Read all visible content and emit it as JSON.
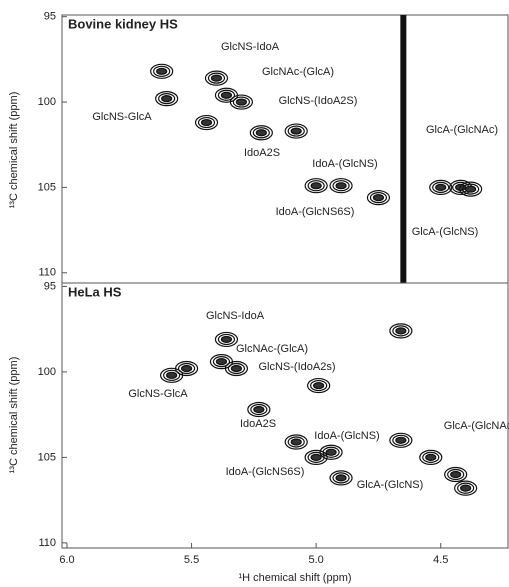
{
  "chart_data": [
    {
      "type": "contour",
      "title": "Bovine kidney HS",
      "x": [
        5.6,
        5.62,
        5.44,
        5.4,
        5.36,
        5.3,
        5.22,
        5.08,
        5.0,
        4.9,
        4.75,
        4.5,
        4.42,
        4.38
      ],
      "values": [
        99.8,
        98.2,
        101.2,
        98.6,
        99.6,
        100.0,
        101.8,
        101.7,
        104.9,
        104.9,
        105.6,
        105.0,
        105.0,
        105.1
      ],
      "vline": 4.65,
      "annotations": [
        "GlcNS-IdoA",
        "GlcNAc-(GlcA)",
        "GlcNS-(IdoA2S)",
        "GlcNS-GlcA",
        "IdoA2S",
        "IdoA-(GlcNS)",
        "IdoA-(GlcNS6S)",
        "GlcA-(GlcNAc)",
        "GlcA-(GlcNS)"
      ],
      "xlim": [
        6.02,
        4.23
      ],
      "ylim": [
        94.9,
        110.6
      ],
      "yticks": [
        95,
        100,
        105,
        110
      ]
    },
    {
      "type": "contour",
      "title": "HeLa HS",
      "x": [
        5.58,
        5.52,
        5.36,
        5.32,
        5.38,
        4.99,
        5.23,
        5.08,
        5.0,
        4.94,
        4.9,
        4.54,
        4.44,
        4.4,
        4.66,
        4.66
      ],
      "values": [
        100.2,
        99.8,
        98.1,
        99.8,
        99.4,
        100.8,
        102.2,
        104.1,
        105.0,
        104.7,
        106.2,
        105.0,
        106.0,
        106.8,
        97.6,
        104.0
      ],
      "annotations": [
        "GlcNS-IdoA",
        "GlcNAc-(GlcA)",
        "GlcNS-(IdoA2s)",
        "GlcNS-GlcA",
        "IdoA2S",
        "IdoA-(GlcNS)",
        "IdoA-(GlcNS6S)",
        "GlcA-(GlcNAc",
        "GlcA-(GlcNS)"
      ],
      "xlim": [
        6.02,
        4.23
      ],
      "ylim": [
        94.8,
        110.3
      ],
      "yticks": [
        95,
        100,
        105,
        110
      ],
      "xticks": [
        {
          "value": 6.0,
          "label": "6.0"
        },
        {
          "value": 5.5,
          "label": "5.5"
        },
        {
          "value": 5.0,
          "label": "5.0"
        },
        {
          "value": 4.5,
          "label": "4.5"
        }
      ],
      "xlabel": "¹H chemical shift (ppm)",
      "ylabel": "¹³C chemical shift (ppm)"
    }
  ]
}
